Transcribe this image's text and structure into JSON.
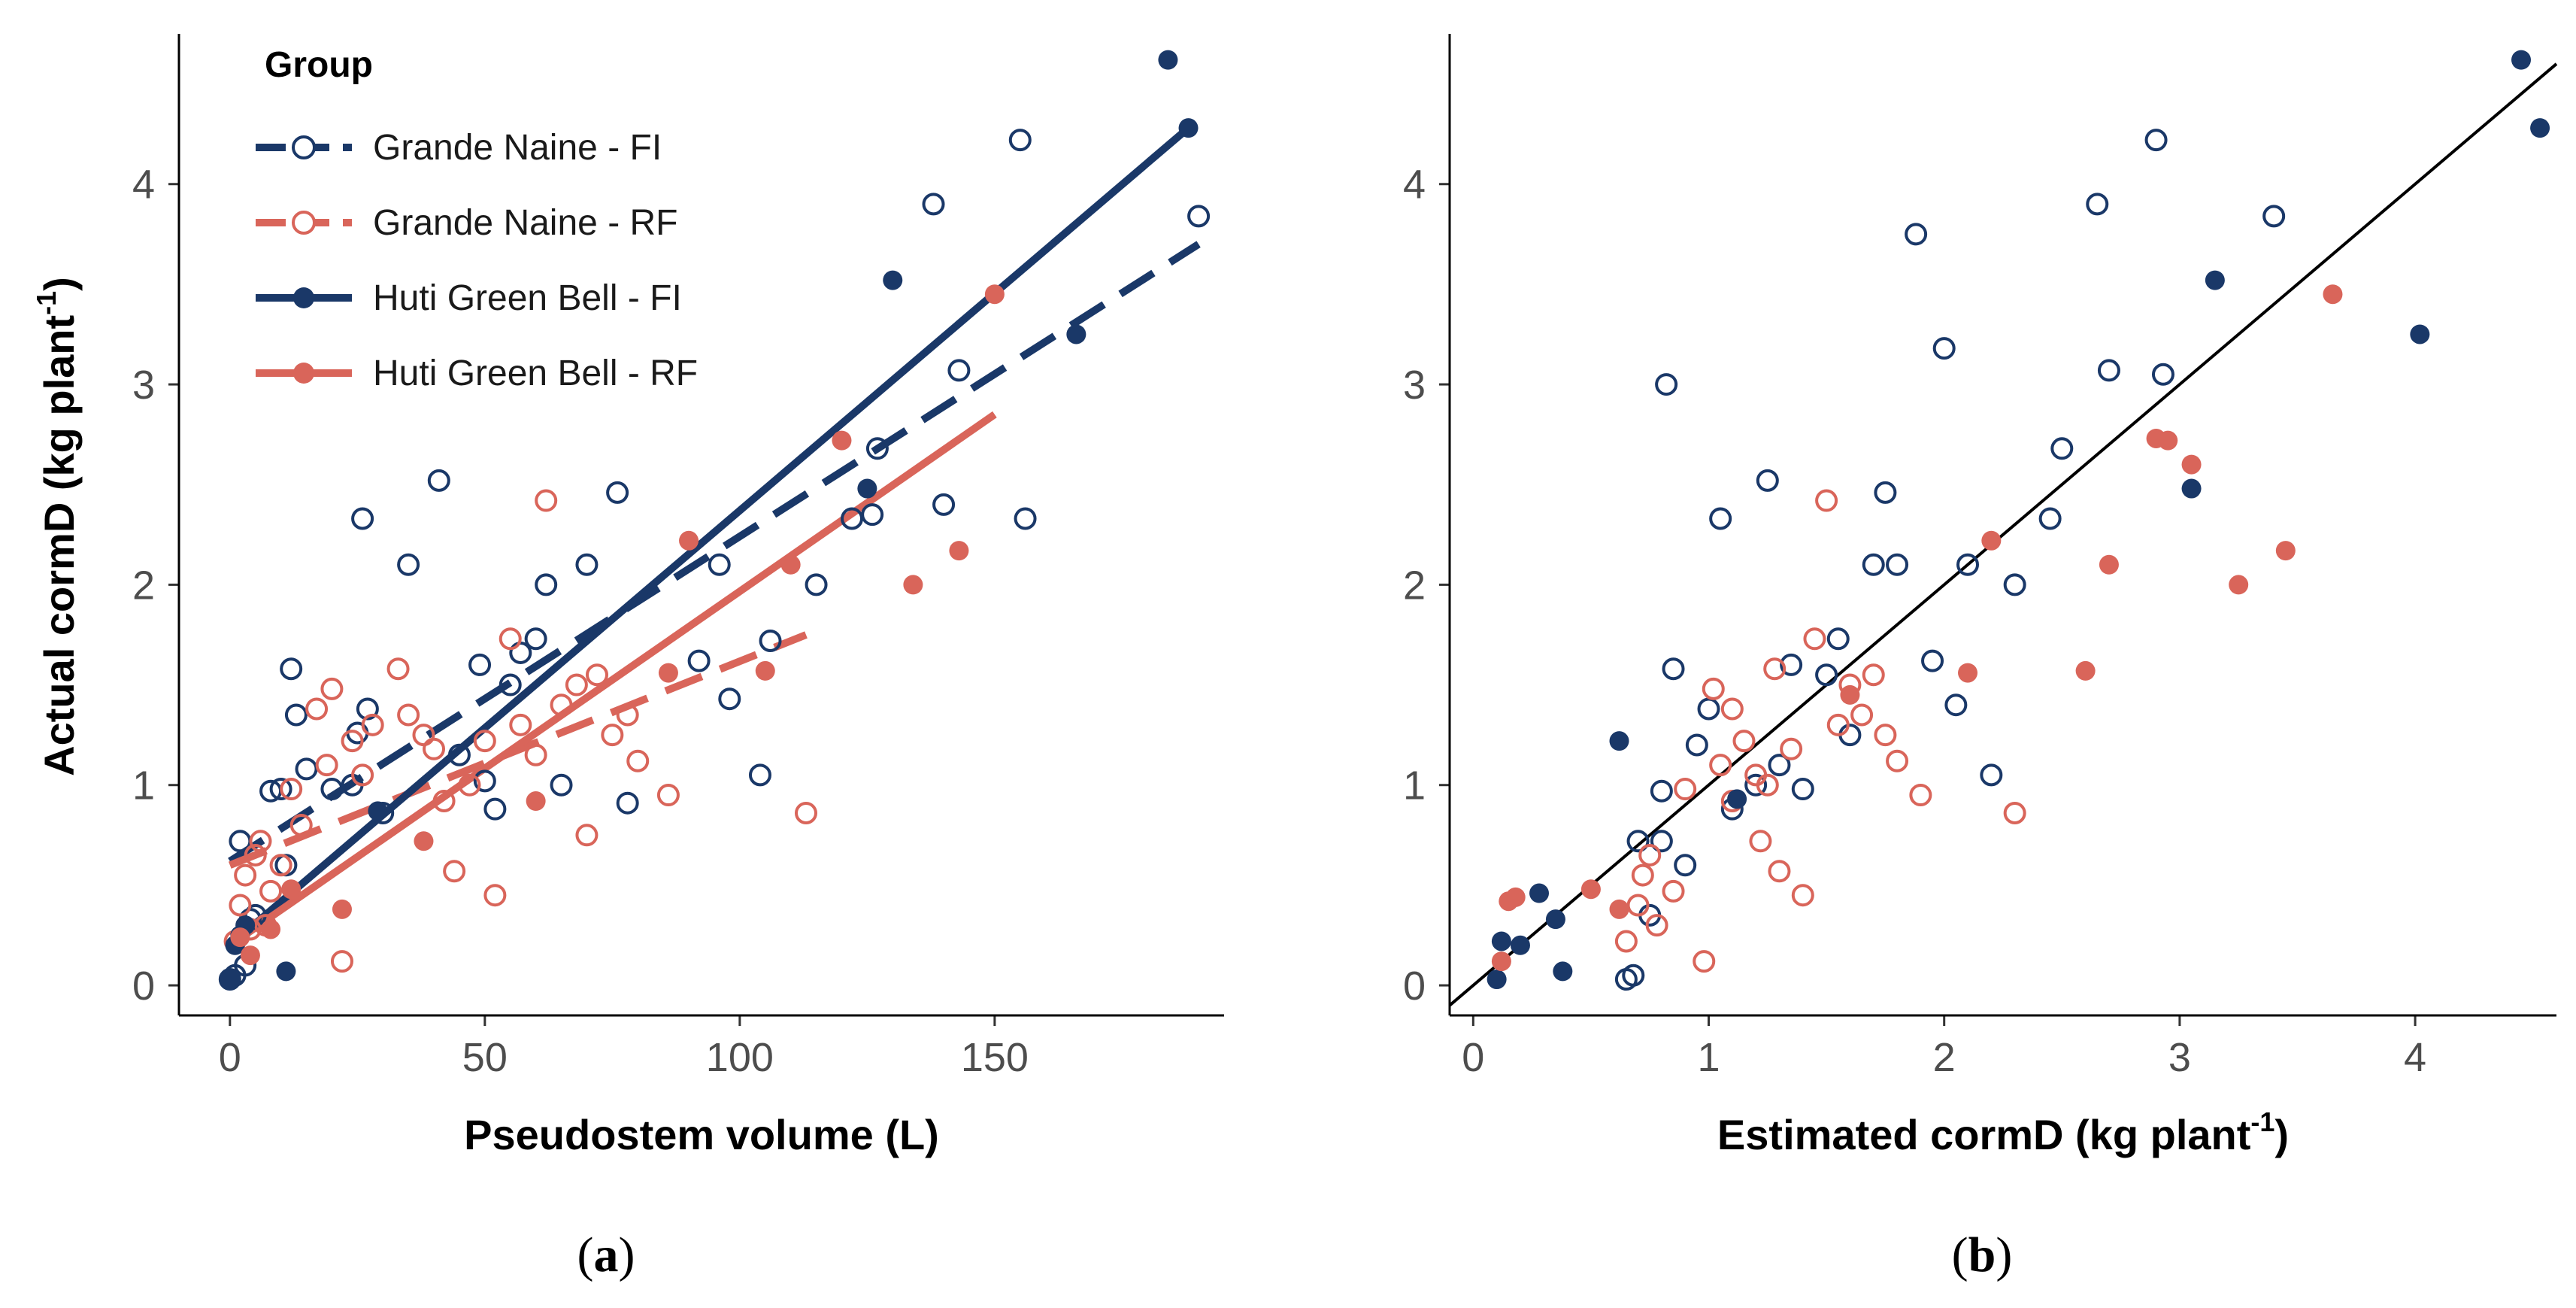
{
  "colors": {
    "fi": "#1a3868",
    "rf": "#d9655a",
    "axis": "#000000",
    "tick_text": "#4d4d4d",
    "identity_line": "#000000"
  },
  "legend": {
    "title": "Group",
    "items": [
      {
        "label": "Grande Naine - FI",
        "color": "#1a3868",
        "filled": false,
        "dashed": true
      },
      {
        "label": "Grande Naine - RF",
        "color": "#d9655a",
        "filled": false,
        "dashed": true
      },
      {
        "label": "Huti Green Bell - FI",
        "color": "#1a3868",
        "filled": true,
        "dashed": false
      },
      {
        "label": "Huti Green Bell - RF",
        "color": "#d9655a",
        "filled": true,
        "dashed": false
      }
    ]
  },
  "chart_data": [
    {
      "id": "a",
      "type": "scatter",
      "caption": "(a)",
      "caption_letter": "a",
      "xlabel": "Pseudostem volume (L)",
      "ylabel_main": "Actual cormD (kg plant",
      "ylabel_sup": "-1",
      "ylabel_end": ")",
      "xlim": [
        -10,
        195
      ],
      "ylim": [
        -0.15,
        4.75
      ],
      "xticks": [
        0,
        50,
        100,
        150
      ],
      "xtick_labels": [
        "0",
        "50",
        "100",
        "150"
      ],
      "yticks": [
        0,
        1,
        2,
        3,
        4
      ],
      "ytick_labels": [
        "0",
        "1",
        "2",
        "3",
        "4"
      ],
      "series": [
        {
          "name": "Grande Naine - FI",
          "filled": false,
          "color": "#1a3868",
          "x": [
            0,
            1,
            2,
            3,
            4,
            5,
            8,
            10,
            11,
            12,
            13,
            15,
            20,
            24,
            25,
            26,
            27,
            30,
            35,
            41,
            45,
            49,
            50,
            52,
            55,
            57,
            60,
            62,
            65,
            70,
            76,
            78,
            92,
            96,
            98,
            104,
            106,
            115,
            122,
            126,
            127,
            138,
            140,
            143,
            155,
            156,
            190
          ],
          "y": [
            0.03,
            0.05,
            0.72,
            0.1,
            0.33,
            0.35,
            0.97,
            0.98,
            0.6,
            1.58,
            1.35,
            1.08,
            0.98,
            1.0,
            1.26,
            2.33,
            1.38,
            0.86,
            2.1,
            2.52,
            1.15,
            1.6,
            1.02,
            0.88,
            1.5,
            1.66,
            1.73,
            2.0,
            1.0,
            2.1,
            2.46,
            0.91,
            1.62,
            2.1,
            1.43,
            1.05,
            1.72,
            2.0,
            2.33,
            2.35,
            2.68,
            3.9,
            2.4,
            3.07,
            4.22,
            2.33,
            3.84
          ]
        },
        {
          "name": "Grande Naine - RF",
          "filled": false,
          "color": "#d9655a",
          "x": [
            1,
            2,
            3,
            4,
            5,
            6,
            7,
            8,
            10,
            12,
            14,
            17,
            19,
            20,
            22,
            24,
            26,
            28,
            33,
            35,
            38,
            40,
            42,
            44,
            47,
            50,
            52,
            55,
            57,
            60,
            62,
            65,
            68,
            70,
            72,
            75,
            78,
            80,
            86,
            113
          ],
          "y": [
            0.22,
            0.4,
            0.55,
            0.28,
            0.65,
            0.72,
            0.3,
            0.47,
            0.6,
            0.98,
            0.8,
            1.38,
            1.1,
            1.48,
            0.12,
            1.22,
            1.05,
            1.3,
            1.58,
            1.35,
            1.25,
            1.18,
            0.92,
            0.57,
            1.0,
            1.22,
            0.45,
            1.73,
            1.3,
            1.15,
            2.42,
            1.4,
            1.5,
            0.75,
            1.55,
            1.25,
            1.35,
            1.12,
            0.95,
            0.86
          ]
        },
        {
          "name": "Huti Green Bell - FI",
          "filled": true,
          "color": "#1a3868",
          "x": [
            0,
            1,
            2,
            3,
            11,
            29,
            125,
            130,
            166,
            184,
            188
          ],
          "y": [
            0.03,
            0.2,
            0.25,
            0.3,
            0.07,
            0.87,
            2.48,
            3.52,
            3.25,
            4.62,
            4.28
          ]
        },
        {
          "name": "Huti Green Bell - RF",
          "filled": true,
          "color": "#d9655a",
          "x": [
            2,
            4,
            8,
            12,
            22,
            38,
            60,
            86,
            90,
            105,
            110,
            120,
            134,
            143,
            150
          ],
          "y": [
            0.24,
            0.15,
            0.28,
            0.48,
            0.38,
            0.72,
            0.92,
            1.56,
            2.22,
            1.57,
            2.1,
            2.72,
            2.0,
            2.17,
            3.45
          ]
        }
      ],
      "fit_lines": [
        {
          "name": "Grande Naine - FI",
          "color": "#1a3868",
          "dashed": true,
          "x": [
            0,
            190
          ],
          "y": [
            0.62,
            3.7
          ]
        },
        {
          "name": "Grande Naine - RF",
          "color": "#d9655a",
          "dashed": true,
          "x": [
            0,
            113
          ],
          "y": [
            0.6,
            1.75
          ]
        },
        {
          "name": "Huti Green Bell - FI",
          "color": "#1a3868",
          "dashed": false,
          "x": [
            0,
            188
          ],
          "y": [
            0.2,
            4.28
          ]
        },
        {
          "name": "Huti Green Bell - RF",
          "color": "#d9655a",
          "dashed": false,
          "x": [
            0,
            150
          ],
          "y": [
            0.2,
            2.85
          ]
        }
      ]
    },
    {
      "id": "b",
      "type": "scatter",
      "caption": "(b)",
      "caption_letter": "b",
      "xlabel_main": "Estimated cormD (kg plant",
      "xlabel_sup": "-1",
      "xlabel_end": ")",
      "xlim": [
        -0.1,
        4.6
      ],
      "ylim": [
        -0.15,
        4.75
      ],
      "xticks": [
        0,
        1,
        2,
        3,
        4
      ],
      "xtick_labels": [
        "0",
        "1",
        "2",
        "3",
        "4"
      ],
      "yticks": [
        0,
        1,
        2,
        3,
        4
      ],
      "ytick_labels": [
        "0",
        "1",
        "2",
        "3",
        "4"
      ],
      "identity_line": {
        "x": [
          -0.1,
          4.6
        ],
        "y": [
          -0.1,
          4.6
        ]
      },
      "series": [
        {
          "name": "Grande Naine - FI",
          "filled": false,
          "color": "#1a3868",
          "x": [
            0.65,
            0.68,
            0.7,
            0.75,
            0.8,
            0.82,
            0.85,
            0.9,
            0.95,
            1.0,
            1.05,
            1.1,
            1.2,
            1.25,
            1.3,
            1.35,
            1.4,
            1.5,
            1.55,
            1.6,
            1.7,
            1.8,
            1.88,
            1.95,
            2.0,
            2.05,
            2.1,
            2.2,
            2.3,
            2.45,
            2.5,
            2.65,
            2.7,
            2.9,
            2.93,
            3.4,
            0.8,
            1.75
          ],
          "y": [
            0.03,
            0.05,
            0.72,
            0.35,
            0.97,
            3.0,
            1.58,
            0.6,
            1.2,
            1.38,
            2.33,
            0.88,
            1.0,
            2.52,
            1.1,
            1.6,
            0.98,
            1.55,
            1.73,
            1.25,
            2.1,
            2.1,
            3.75,
            1.62,
            3.18,
            1.4,
            2.1,
            1.05,
            2.0,
            2.33,
            2.68,
            3.9,
            3.07,
            4.22,
            3.05,
            3.84,
            0.72,
            2.46
          ]
        },
        {
          "name": "Grande Naine - RF",
          "filled": false,
          "color": "#d9655a",
          "x": [
            0.65,
            0.7,
            0.72,
            0.75,
            0.78,
            0.85,
            0.9,
            0.98,
            1.02,
            1.05,
            1.1,
            1.15,
            1.2,
            1.22,
            1.28,
            1.3,
            1.35,
            1.4,
            1.45,
            1.5,
            1.55,
            1.6,
            1.65,
            1.7,
            1.75,
            1.8,
            1.9,
            2.3,
            1.25,
            1.1
          ],
          "y": [
            0.22,
            0.4,
            0.55,
            0.65,
            0.3,
            0.47,
            0.98,
            0.12,
            1.48,
            1.1,
            1.38,
            1.22,
            1.05,
            0.72,
            1.58,
            0.57,
            1.18,
            0.45,
            1.73,
            2.42,
            1.3,
            1.5,
            1.35,
            1.55,
            1.25,
            1.12,
            0.95,
            0.86,
            1.0,
            0.92
          ]
        },
        {
          "name": "Huti Green Bell - FI",
          "filled": true,
          "color": "#1a3868",
          "x": [
            0.1,
            0.12,
            0.2,
            0.28,
            0.35,
            0.38,
            0.62,
            1.12,
            3.05,
            3.15,
            4.02,
            4.45,
            4.53
          ],
          "y": [
            0.03,
            0.22,
            0.2,
            0.46,
            0.33,
            0.07,
            1.22,
            0.93,
            2.48,
            3.52,
            3.25,
            4.62,
            4.28
          ]
        },
        {
          "name": "Huti Green Bell - RF",
          "filled": true,
          "color": "#d9655a",
          "x": [
            0.12,
            0.15,
            0.18,
            0.5,
            0.62,
            1.6,
            2.1,
            2.2,
            2.6,
            2.7,
            2.9,
            2.95,
            3.05,
            3.25,
            3.45,
            3.65
          ],
          "y": [
            0.12,
            0.42,
            0.44,
            0.48,
            0.38,
            1.45,
            1.56,
            2.22,
            1.57,
            2.1,
            2.73,
            2.72,
            2.6,
            2.0,
            2.17,
            3.45
          ]
        }
      ]
    }
  ]
}
